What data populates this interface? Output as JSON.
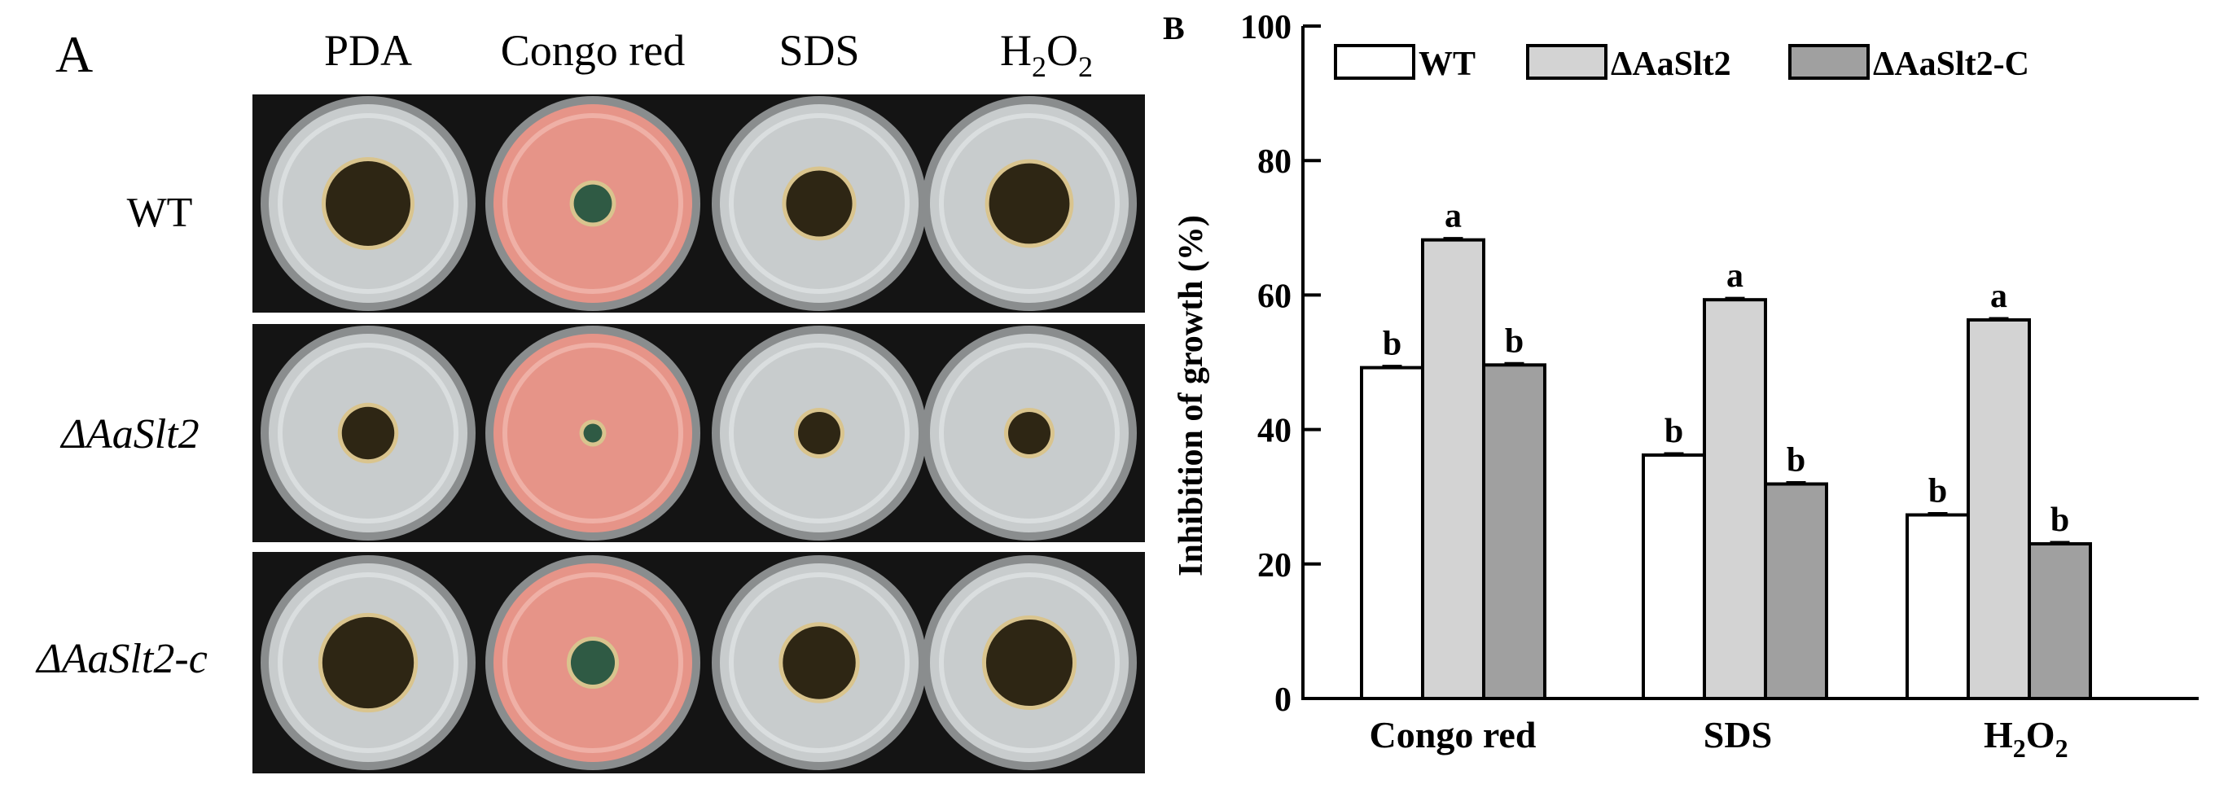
{
  "panel_a": {
    "label": "A",
    "columns": [
      "PDA",
      "Congo red",
      "SDS",
      "H",
      "2",
      "O",
      "2"
    ],
    "column_labels": {
      "pda": "PDA",
      "congo": "Congo red",
      "sds": "SDS",
      "h2o2": {
        "h": "H",
        "sub1": "2",
        "o": "O",
        "sub2": "2"
      }
    },
    "rows": [
      {
        "label": "WT"
      },
      {
        "label": "ΔAaSlt2"
      },
      {
        "label": "ΔAaSlt2-c"
      }
    ],
    "colors": {
      "photo_background": "#141414",
      "plate_grey": "#c8cccd",
      "plate_pink": "#e69488",
      "colony_dark": "#2e2614",
      "colony_green": "#2f5a44",
      "colony_ring": "#d9c48e"
    },
    "colonies": {
      "description_key_only": true,
      "relative_size": [
        [
          1.0,
          0.45,
          0.78,
          0.95
        ],
        [
          0.62,
          0.22,
          0.5,
          0.5
        ],
        [
          1.08,
          0.52,
          0.86,
          1.02
        ]
      ]
    }
  },
  "panel_b": {
    "label": "B",
    "chart_data": {
      "type": "bar",
      "categories": [
        "Congo red",
        "SDS",
        "H2O2"
      ],
      "category_labels": {
        "congo": "Congo red",
        "sds": "SDS",
        "h2o2": {
          "h": "H",
          "sub1": "2",
          "o": "O",
          "sub2": "2"
        }
      },
      "series": [
        {
          "name": "WT",
          "values": [
            49.2,
            36.2,
            27.3
          ],
          "letters": [
            "b",
            "b",
            "b"
          ],
          "color": "#ffffff"
        },
        {
          "name": "ΔAaSlt2",
          "values": [
            68.2,
            59.3,
            56.3
          ],
          "letters": [
            "a",
            "a",
            "a"
          ],
          "color": "#d3d3d3"
        },
        {
          "name": "ΔAaSlt2-C",
          "values": [
            49.6,
            31.9,
            23.0
          ],
          "letters": [
            "b",
            "b",
            "b"
          ],
          "color": "#a0a0a0"
        }
      ],
      "ylabel": "Inhibition of growth (%)",
      "xlabel": "",
      "ylim": [
        0,
        100
      ],
      "yticks": [
        "0",
        "20",
        "40",
        "60",
        "80",
        "100"
      ],
      "legend_position": "top",
      "grid": false
    }
  }
}
